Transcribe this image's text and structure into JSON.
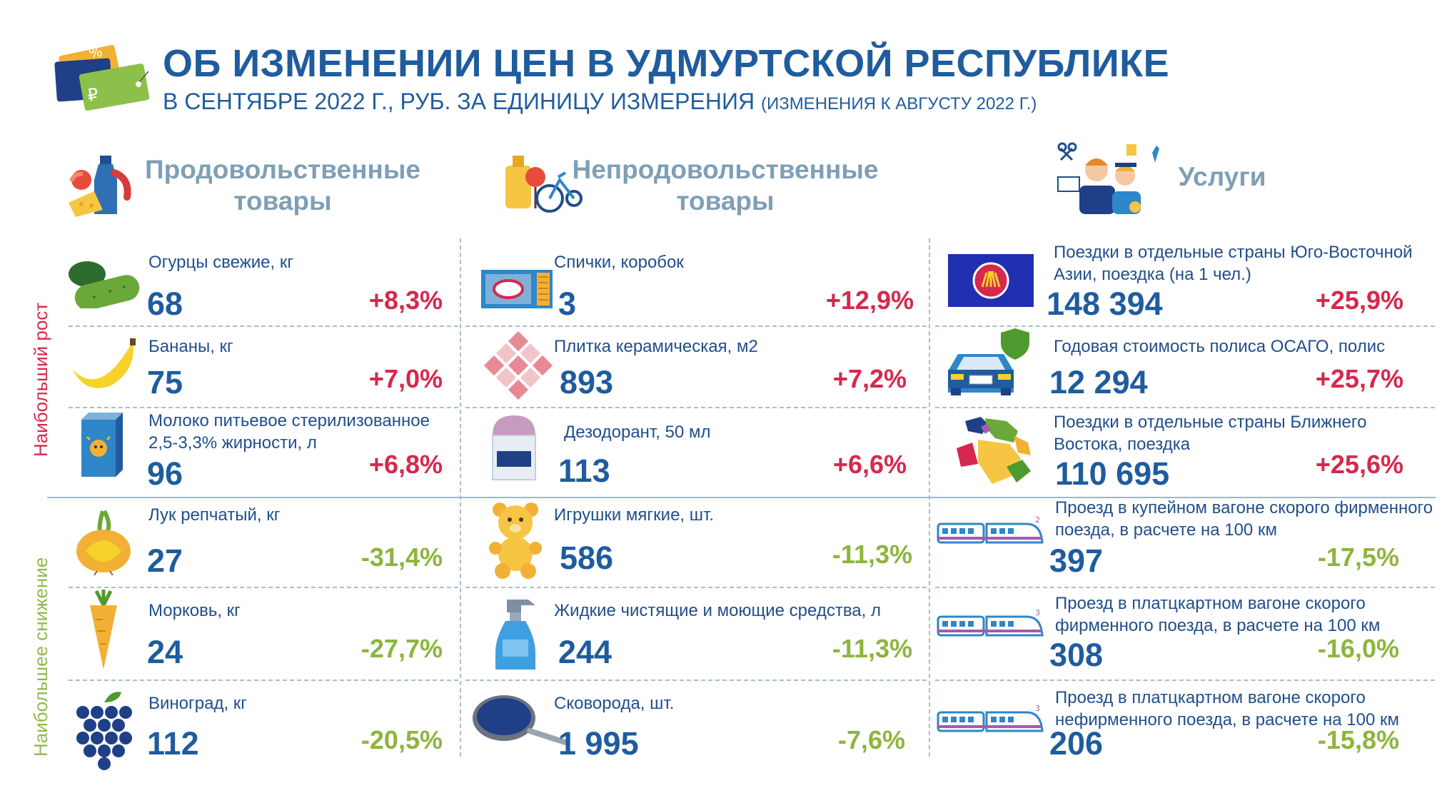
{
  "header": {
    "title": "ОБ ИЗМЕНЕНИИ ЦЕН В УДМУРТСКОЙ РЕСПУБЛИКЕ",
    "subtitle_main": "В СЕНТЯБРЕ 2022 Г., РУБ. ЗА ЕДИНИЦУ ИЗМЕРЕНИЯ ",
    "subtitle_note": "(ИЗМЕНЕНИЯ К АВГУСТУ 2022 Г.)"
  },
  "side_labels": {
    "rise": "Наибольший рост",
    "fall": "Наибольшее снижение"
  },
  "categories": [
    {
      "title_line1": "Продовольственные",
      "title_line2": "товары"
    },
    {
      "title_line1": "Непродовольственные",
      "title_line2": "товары"
    },
    {
      "title_line1": "Услуги",
      "title_line2": ""
    }
  ],
  "food": [
    {
      "name": "Огурцы свежие, кг",
      "price": "68",
      "change": "+8,3%",
      "icon": "cucumber-icon"
    },
    {
      "name": "Бананы, кг",
      "price": "75",
      "change": "+7,0%",
      "icon": "banana-icon"
    },
    {
      "name": "Молоко питьевое стерилизованное 2,5-3,3% жирности, л",
      "price": "96",
      "change": "+6,8%",
      "icon": "milk-icon"
    },
    {
      "name": "Лук репчатый, кг",
      "price": "27",
      "change": "-31,4%",
      "icon": "onion-icon"
    },
    {
      "name": "Морковь, кг",
      "price": "24",
      "change": "-27,7%",
      "icon": "carrot-icon"
    },
    {
      "name": "Виноград, кг",
      "price": "112",
      "change": "-20,5%",
      "icon": "grapes-icon"
    }
  ],
  "nonfood": [
    {
      "name": "Спички, коробок",
      "price": "3",
      "change": "+12,9%",
      "icon": "matchbox-icon"
    },
    {
      "name": "Плитка керамическая, м2",
      "price": "893",
      "change": "+7,2%",
      "icon": "tile-icon"
    },
    {
      "name": "Дезодорант, 50 мл",
      "price": "113",
      "change": "+6,6%",
      "icon": "deodorant-icon"
    },
    {
      "name": "Игрушки мягкие, шт.",
      "price": "586",
      "change": "-11,3%",
      "icon": "teddy-bear-icon"
    },
    {
      "name": "Жидкие чистящие и моющие средства, л",
      "price": "244",
      "change": "-11,3%",
      "icon": "spray-bottle-icon"
    },
    {
      "name": "Сковорода, шт.",
      "price": "1 995",
      "change": "-7,6%",
      "icon": "frying-pan-icon"
    }
  ],
  "services": [
    {
      "name": "Поездки в отдельные страны Юго-Восточной Азии, поездка (на 1 чел.)",
      "price": "148 394",
      "change": "+25,9%",
      "icon": "asean-flag-icon"
    },
    {
      "name": "Годовая стоимость полиса ОСАГО, полис",
      "price": "12 294",
      "change": "+25,7%",
      "icon": "car-insurance-icon"
    },
    {
      "name": "Поездки в отдельные страны Ближнего Востока, поездка",
      "price": "110 695",
      "change": "+25,6%",
      "icon": "middle-east-map-icon"
    },
    {
      "name": "Проезд в купейном вагоне скорого фирменного поезда, в расчете на 100 км",
      "price": "397",
      "change": "-17,5%",
      "icon": "train-icon",
      "badge": "2"
    },
    {
      "name": "Проезд в платцкартном вагоне скорого фирменного поезда, в расчете на 100 км",
      "price": "308",
      "change": "-16,0%",
      "icon": "train-icon",
      "badge": "3"
    },
    {
      "name": "Проезд в платцкартном вагоне скорого нефирменного поезда, в расчете на 100 км",
      "price": "206",
      "change": "-15,8%",
      "icon": "train-icon",
      "badge": "3"
    }
  ],
  "colors": {
    "title": "#1f5c9e",
    "category": "#7f9fb5",
    "rise": "#d6284e",
    "fall": "#8db53c"
  }
}
